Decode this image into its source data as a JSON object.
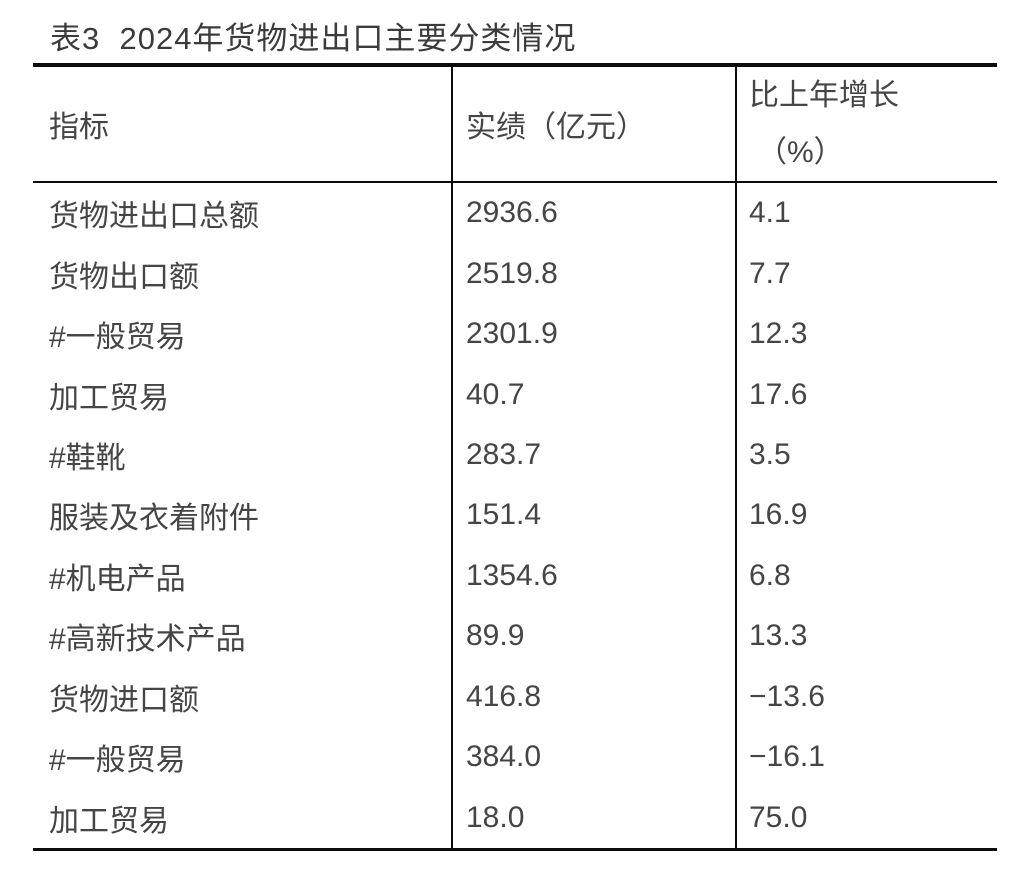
{
  "page": {
    "title": "表3  2024年货物进出口主要分类情况"
  },
  "table": {
    "columns": [
      {
        "label": "指标"
      },
      {
        "label": "实绩（亿元）"
      },
      {
        "label": "比上年增长",
        "label2": "（%）"
      }
    ],
    "rows": [
      {
        "indicator": "货物进出口总额",
        "value": "2936.6",
        "growth": "4.1"
      },
      {
        "indicator": "货物出口额",
        "value": "2519.8",
        "growth": "7.7"
      },
      {
        "indicator": "#一般贸易",
        "value": "2301.9",
        "growth": "12.3"
      },
      {
        "indicator": "加工贸易",
        "value": "40.7",
        "growth": "17.6"
      },
      {
        "indicator": "#鞋靴",
        "value": "283.7",
        "growth": "3.5"
      },
      {
        "indicator": "服装及衣着附件",
        "value": "151.4",
        "growth": "16.9"
      },
      {
        "indicator": "#机电产品",
        "value": "1354.6",
        "growth": "6.8"
      },
      {
        "indicator": "#高新技术产品",
        "value": "89.9",
        "growth": "13.3"
      },
      {
        "indicator": "货物进口额",
        "value": "416.8",
        "growth": "−13.6"
      },
      {
        "indicator": "#一般贸易",
        "value": "384.0",
        "growth": "−16.1"
      },
      {
        "indicator": "加工贸易",
        "value": "18.0",
        "growth": "75.0"
      }
    ]
  },
  "chart_data": {
    "type": "table",
    "title": "表3 2024年货物进出口主要分类情况",
    "columns": [
      "指标",
      "实绩（亿元）",
      "比上年增长（%）"
    ],
    "rows": [
      [
        "货物进出口总额",
        2936.6,
        4.1
      ],
      [
        "货物出口额",
        2519.8,
        7.7
      ],
      [
        "#一般贸易",
        2301.9,
        12.3
      ],
      [
        "加工贸易",
        40.7,
        17.6
      ],
      [
        "#鞋靴",
        283.7,
        3.5
      ],
      [
        "服装及衣着附件",
        151.4,
        16.9
      ],
      [
        "#机电产品",
        1354.6,
        6.8
      ],
      [
        "#高新技术产品",
        89.9,
        13.3
      ],
      [
        "货物进口额",
        416.8,
        -13.6
      ],
      [
        "#一般贸易",
        384.0,
        -16.1
      ],
      [
        "加工贸易",
        18.0,
        75.0
      ]
    ]
  },
  "colors": {
    "background": "#ffffff",
    "text": "#454545",
    "title_text": "#3b3b3b",
    "border": "#0b0b0b"
  }
}
